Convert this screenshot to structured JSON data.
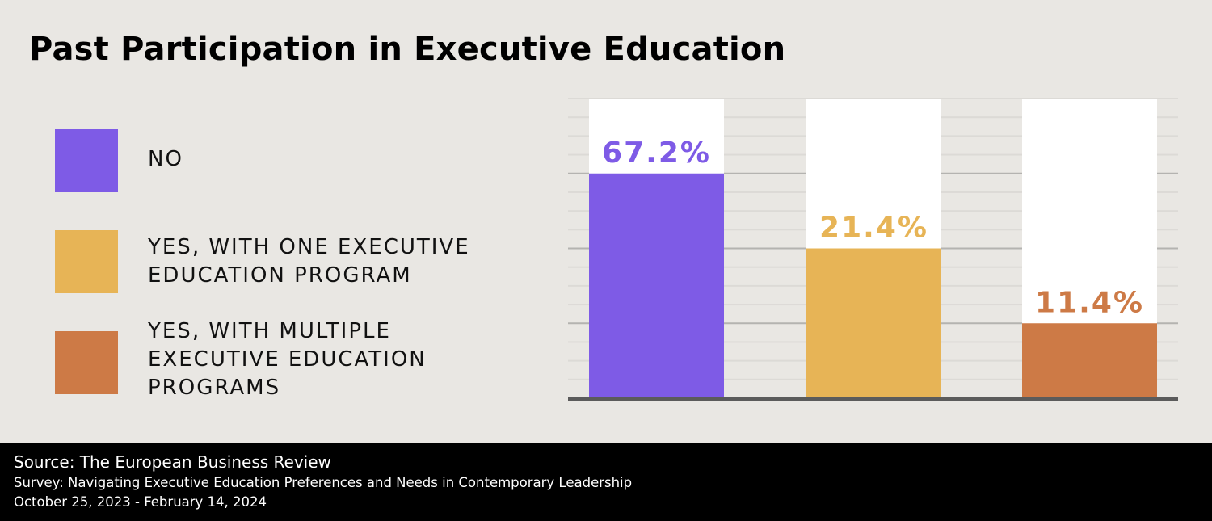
{
  "chart_data": {
    "type": "bar",
    "title": "Past Participation in Executive Education",
    "categories": [
      "NO",
      "YES, WITH ONE EXECUTIVE\nEDUCATION PROGRAM",
      "YES, WITH MULTIPLE\nEXECUTIVE EDUCATION\nPROGRAMS"
    ],
    "values": [
      67.2,
      21.4,
      11.4
    ],
    "value_labels": [
      "67.2%",
      "21.4%",
      "11.4%"
    ],
    "colors": [
      "#7e5be6",
      "#e7b456",
      "#cd7a46"
    ],
    "xlabel": "",
    "ylabel": "",
    "legend_position": "left",
    "grid": true
  },
  "footer": {
    "source": "Source: The European Business Review",
    "survey": "Survey: Navigating Executive Education Preferences and Needs in Contemporary Leadership",
    "dates": "October 25, 2023 - February 14, 2024"
  }
}
